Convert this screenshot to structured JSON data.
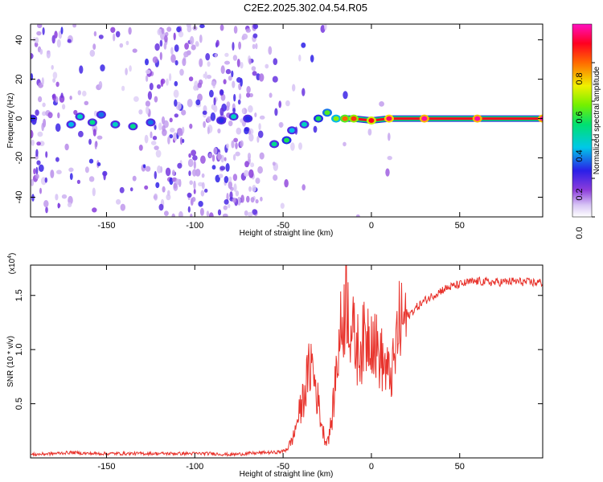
{
  "title": "C2E2.2025.302.04.54.R05",
  "chart_data": [
    {
      "type": "heatmap",
      "xlabel": "Height of straight line (km)",
      "ylabel": "Frequency (Hz)",
      "xlim": [
        -193,
        97
      ],
      "ylim": [
        -50,
        48
      ],
      "x_ticks": [
        -150,
        -100,
        -50,
        0,
        50
      ],
      "y_ticks": [
        -40,
        -20,
        0,
        20,
        40
      ],
      "grid": false,
      "colorbar": {
        "label": "Normalized spectral amplitude",
        "range": [
          0,
          1
        ],
        "ticks": [
          0.0,
          0.2,
          0.4,
          0.6,
          0.8
        ],
        "tick_labels": [
          "0.0",
          "0.2",
          "0.4",
          "0.6",
          "0.8"
        ],
        "colormap": "rainbow (white-violet-blue-cyan-green-yellow-red-magenta)"
      },
      "ridge": [
        {
          "x": -192,
          "freq": 0,
          "amp": 0.25
        },
        {
          "x": -170,
          "freq": -3,
          "amp": 0.35
        },
        {
          "x": -165,
          "freq": 1,
          "amp": 0.4
        },
        {
          "x": -158,
          "freq": -2,
          "amp": 0.45
        },
        {
          "x": -153,
          "freq": 2,
          "amp": 0.3
        },
        {
          "x": -145,
          "freq": -3,
          "amp": 0.4
        },
        {
          "x": -135,
          "freq": -4,
          "amp": 0.45
        },
        {
          "x": -125,
          "freq": -2,
          "amp": 0.3
        },
        {
          "x": -85,
          "freq": -1,
          "amp": 0.25
        },
        {
          "x": -78,
          "freq": 1,
          "amp": 0.4
        },
        {
          "x": -70,
          "freq": 0,
          "amp": 0.25
        },
        {
          "x": -55,
          "freq": -13,
          "amp": 0.45
        },
        {
          "x": -48,
          "freq": -11,
          "amp": 0.5
        },
        {
          "x": -45,
          "freq": -6,
          "amp": 0.35
        },
        {
          "x": -38,
          "freq": -3,
          "amp": 0.4
        },
        {
          "x": -30,
          "freq": 0,
          "amp": 0.5
        },
        {
          "x": -25,
          "freq": 3,
          "amp": 0.55
        },
        {
          "x": -20,
          "freq": 0,
          "amp": 0.6
        },
        {
          "x": -15,
          "freq": 0,
          "amp": 0.8
        },
        {
          "x": -10,
          "freq": 0,
          "amp": 0.85
        },
        {
          "x": 0,
          "freq": -1,
          "amp": 0.9
        },
        {
          "x": 10,
          "freq": 0,
          "amp": 0.95
        },
        {
          "x": 30,
          "freq": 0,
          "amp": 0.98
        },
        {
          "x": 60,
          "freq": 0,
          "amp": 0.98
        },
        {
          "x": 97,
          "freq": 0,
          "amp": 0.98
        }
      ]
    },
    {
      "type": "line",
      "xlabel": "Height of straight line (km)",
      "ylabel": "SNR (10 * v/v)",
      "y_multiplier_label": "(x10",
      "y_multiplier_exp": "4",
      "y_multiplier_close": ")",
      "xlim": [
        -193,
        97
      ],
      "ylim": [
        0,
        1.78
      ],
      "x_ticks": [
        -150,
        -100,
        -50,
        0,
        50
      ],
      "y_ticks": [
        0.5,
        1.0,
        1.5
      ],
      "y_tick_labels": [
        "0.5",
        "1.0",
        "1.5"
      ],
      "color": "#e8332c",
      "series": [
        {
          "x": [
            -193,
            -180,
            -170,
            -160,
            -150,
            -140,
            -130,
            -120,
            -110,
            -100,
            -90,
            -80,
            -70,
            -60,
            -55,
            -50,
            -47,
            -44,
            -42,
            -40,
            -38,
            -36,
            -34,
            -32,
            -30,
            -28,
            -26,
            -24,
            -22,
            -20,
            -18,
            -16,
            -14,
            -12,
            -10,
            -8,
            -5,
            -2,
            0,
            3,
            6,
            10,
            13,
            15,
            20,
            25,
            30,
            35,
            40,
            45,
            50,
            55,
            60,
            70,
            80,
            90,
            97
          ],
          "y": [
            0.03,
            0.04,
            0.05,
            0.04,
            0.04,
            0.04,
            0.04,
            0.04,
            0.04,
            0.04,
            0.04,
            0.03,
            0.04,
            0.05,
            0.05,
            0.06,
            0.1,
            0.2,
            0.35,
            0.45,
            0.6,
            0.75,
            0.9,
            0.7,
            0.5,
            0.3,
            0.15,
            0.2,
            0.4,
            0.8,
            1.1,
            1.3,
            1.55,
            1.25,
            1.1,
            1.0,
            1.05,
            1.15,
            1.2,
            1.0,
            0.9,
            0.75,
            0.85,
            1.2,
            1.3,
            1.38,
            1.45,
            1.5,
            1.55,
            1.58,
            1.6,
            1.62,
            1.63,
            1.62,
            1.63,
            1.62,
            1.62
          ]
        }
      ]
    }
  ]
}
